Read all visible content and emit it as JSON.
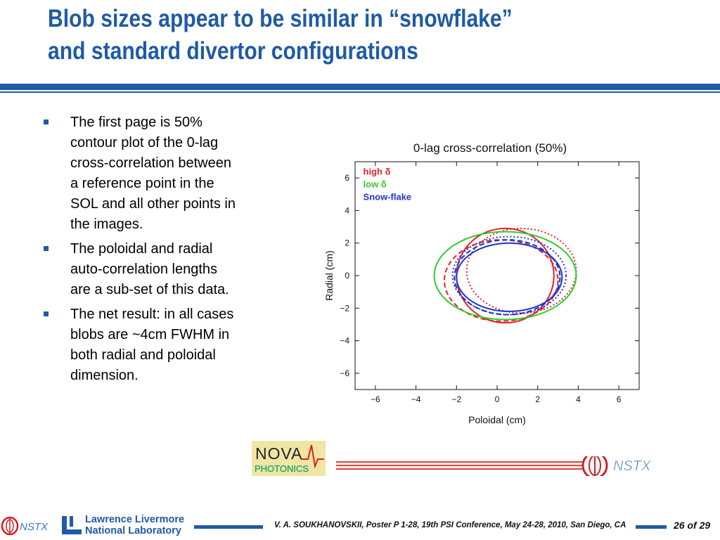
{
  "slide": {
    "title_line1": "Blob sizes appear to be similar in “snowflake”",
    "title_line2": "and standard divertor configurations",
    "bullets": [
      "The first page is 50% contour plot of the 0-lag cross-correlation between a reference point in the SOL and all other points in the images.",
      "The poloidal and radial auto-correlation lengths are a sub-set of this data.",
      "The net result: in all cases blobs are ~4cm FWHM in both radial and poloidal dimension."
    ],
    "footer_text": "V. A. SOUKHANOVSKII, Poster P 1-28, 19th PSI Conference, May 24-28, 2010, San Diego, CA",
    "footer_page": "26 of 29",
    "logo_nova_line1": "NOVA",
    "logo_nova_line2": "PHOTONICS",
    "logo_nstx": "NSTX",
    "logo_llnl_line1": "Lawrence Livermore",
    "logo_llnl_line2": "National Laboratory"
  },
  "colors": {
    "accent": "#1f5aa6",
    "high": "#e8202a",
    "low": "#2ecc2e",
    "snowflake": "#2233cc"
  },
  "chart_data": {
    "type": "line",
    "title": "0-lag cross-correlation (50%)",
    "xlabel": "Poloidal (cm)",
    "ylabel": "Radial (cm)",
    "xlim": [
      -7,
      7
    ],
    "ylim": [
      -7,
      7
    ],
    "xticks": [
      -6,
      -4,
      -2,
      0,
      2,
      4,
      6
    ],
    "yticks": [
      -6,
      -4,
      -2,
      0,
      2,
      4,
      6
    ],
    "legend_position": "top-left",
    "series": [
      {
        "name": "high δ",
        "color": "#e8202a",
        "style": "solid",
        "center": [
          0.4,
          0.0
        ],
        "radii": [
          2.4,
          2.9
        ]
      },
      {
        "name": "high δ",
        "color": "#e8202a",
        "style": "dashed",
        "center": [
          0.2,
          -0.3
        ],
        "radii": [
          2.8,
          2.5
        ]
      },
      {
        "name": "high δ",
        "color": "#e8202a",
        "style": "dotted",
        "center": [
          1.2,
          0.3
        ],
        "radii": [
          2.7,
          2.6
        ]
      },
      {
        "name": "low δ",
        "color": "#2ecc2e",
        "style": "solid",
        "center": [
          0.4,
          0.0
        ],
        "radii": [
          3.5,
          2.7
        ]
      },
      {
        "name": "low δ",
        "color": "#2ecc2e",
        "style": "dashed",
        "center": [
          0.5,
          -0.1
        ],
        "radii": [
          2.6,
          2.3
        ]
      },
      {
        "name": "Snow-flake",
        "color": "#2233cc",
        "style": "solid",
        "center": [
          0.6,
          -0.1
        ],
        "radii": [
          2.6,
          2.1
        ]
      },
      {
        "name": "Snow-flake",
        "color": "#2233cc",
        "style": "dashed",
        "center": [
          0.5,
          -0.1
        ],
        "radii": [
          2.6,
          2.3
        ]
      },
      {
        "name": "Snow-flake",
        "color": "#2233cc",
        "style": "dotted",
        "center": [
          0.6,
          0.0
        ],
        "radii": [
          2.8,
          2.4
        ]
      }
    ],
    "legend": [
      {
        "label": "high δ",
        "color": "#e8202a"
      },
      {
        "label": "low δ",
        "color": "#2ecc2e"
      },
      {
        "label": "Snow-flake",
        "color": "#2233cc"
      }
    ]
  }
}
